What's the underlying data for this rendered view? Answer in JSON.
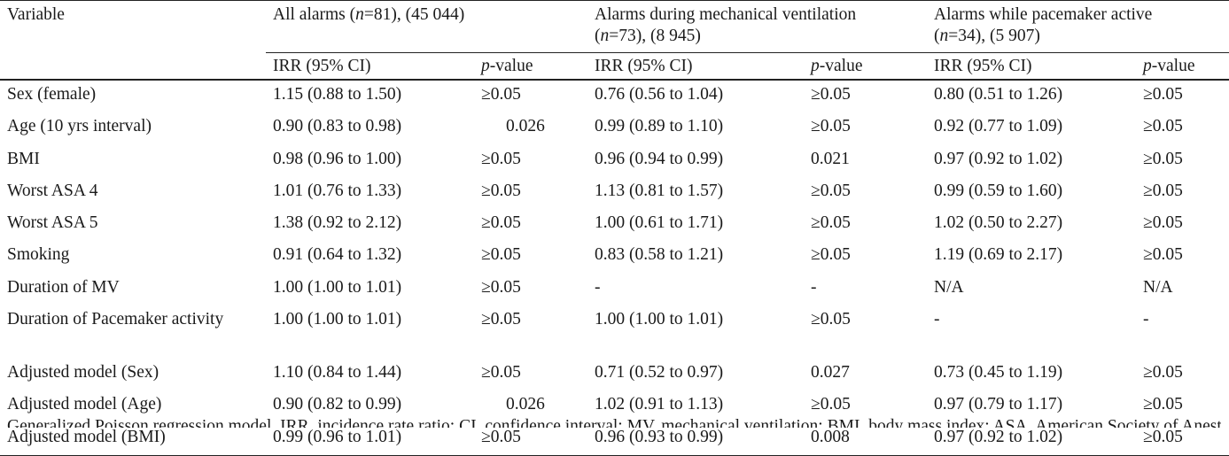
{
  "header": {
    "variable_label": "Variable",
    "groups": [
      {
        "pre": "All alarms (",
        "n_var": "n",
        "n_rest": "=81), (45 044)"
      },
      {
        "line1": "Alarms during mechanical ventilation",
        "pre": "(",
        "n_var": "n",
        "n_rest": "=73), (8 945)"
      },
      {
        "line1": "Alarms while pacemaker active",
        "pre": "(",
        "n_var": "n",
        "n_rest": "=34), (5 907)"
      }
    ],
    "irr_label": "IRR (95% CI)",
    "p_italic": "p",
    "p_rest": "-value"
  },
  "rows": [
    {
      "variable": "Sex (female)",
      "cells": [
        "1.15 (0.88 to 1.50)",
        "≥0.05",
        "0.76 (0.56 to 1.04)",
        "≥0.05",
        "0.80 (0.51 to 1.26)",
        "≥0.05"
      ]
    },
    {
      "variable": "Age (10 yrs interval)",
      "cells": [
        "0.90 (0.83 to 0.98)",
        "0.026",
        "0.99 (0.89 to 1.10)",
        "≥0.05",
        "0.92 (0.77 to 1.09)",
        "≥0.05"
      ]
    },
    {
      "variable": "BMI",
      "cells": [
        "0.98 (0.96 to 1.00)",
        "≥0.05",
        "0.96 (0.94 to 0.99)",
        "0.021",
        "0.97 (0.92 to 1.02)",
        "≥0.05"
      ]
    },
    {
      "variable": "Worst ASA 4",
      "cells": [
        "1.01 (0.76 to 1.33)",
        "≥0.05",
        "1.13 (0.81 to 1.57)",
        "≥0.05",
        "0.99 (0.59 to 1.60)",
        "≥0.05"
      ]
    },
    {
      "variable": "Worst ASA 5",
      "cells": [
        "1.38 (0.92 to 2.12)",
        "≥0.05",
        "1.00 (0.61 to 1.71)",
        "≥0.05",
        "1.02 (0.50 to 2.27)",
        "≥0.05"
      ]
    },
    {
      "variable": "Smoking",
      "cells": [
        "0.91 (0.64 to 1.32)",
        "≥0.05",
        "0.83 (0.58 to 1.21)",
        "≥0.05",
        "1.19 (0.69 to 2.17)",
        "≥0.05"
      ]
    },
    {
      "variable": "Duration of MV",
      "cells": [
        "1.00 (1.00 to 1.01)",
        "≥0.05",
        "-",
        "-",
        "N/A",
        "N/A"
      ]
    },
    {
      "variable": "Duration of Pacemaker activity",
      "cells": [
        "1.00 (1.00 to 1.01)",
        "≥0.05",
        "1.00 (1.00 to 1.01)",
        "≥0.05",
        "-",
        "-"
      ]
    },
    {
      "variable": "Adjusted model (Sex)",
      "cells": [
        "1.10 (0.84 to 1.44)",
        "≥0.05",
        "0.71 (0.52 to 0.97)",
        "0.027",
        "0.73 (0.45 to 1.19)",
        "≥0.05"
      ]
    },
    {
      "variable": "Adjusted model (Age)",
      "cells": [
        "0.90 (0.82 to 0.99)",
        "0.026",
        "1.02 (0.91 to 1.13)",
        "≥0.05",
        "0.97 (0.79 to 1.17)",
        "≥0.05"
      ]
    },
    {
      "variable": "Adjusted model (BMI)",
      "cells": [
        "0.99 (0.96 to 1.01)",
        "≥0.05",
        "0.96 (0.93 to 0.99)",
        "0.008",
        "0.97 (0.92 to 1.02)",
        "≥0.05"
      ]
    }
  ],
  "footnote": "Generalized Poisson regression model. IRR, incidence rate ratio; CI, confidence interval; MV, mechanical ventilation; BMI, body mass index; ASA, American Society of Anesthesiologists"
}
